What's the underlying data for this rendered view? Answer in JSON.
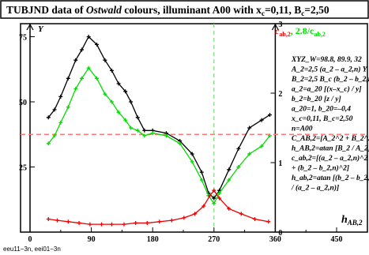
{
  "chart_data": {
    "type": "line",
    "title_parts": {
      "prefix": "TUBJND data of ",
      "italic": "Ostwald",
      "mid": " colours, illuminant A00 with x",
      "sub_c": "c",
      "mid2": "=0,11, B",
      "sub_c2": "c",
      "suffix": "=2,50"
    },
    "ylabel_left": "Y",
    "ylabel_right_red": "c",
    "ylabel_right_red_sub": "ab,2",
    "ylabel_right_green": ", 2.8/c",
    "ylabel_right_green_sub": "ab,2",
    "xlabel": "h",
    "xlabel_sub": "AB,2",
    "xlim": [
      0,
      480
    ],
    "ylim": [
      0,
      80
    ],
    "xticks": [
      "0",
      "90",
      "180",
      "270",
      "360",
      "450"
    ],
    "xtick_values": [
      0,
      90,
      180,
      270,
      360,
      450
    ],
    "yticks_left": [
      "25",
      "50",
      "75"
    ],
    "ytick_left_values": [
      25,
      50,
      75
    ],
    "yticks_right": [
      "0",
      "1",
      "2",
      "3"
    ],
    "ytick_right_values": [
      0,
      26.667,
      53.333,
      80
    ],
    "annotations": [
      "XYZ_W=98.8, 89.9, 32",
      "A_2=2,5 (a_2 – a_2,n) Y",
      "B_2=2,5 B_c (b_2 – b_2,n)",
      "a_2=a_20 [(x–x_c) / y]",
      "b_2=b_20 [z / y]",
      "a_20=1, b_20=–0,4",
      "x_c=0,11, B_c=2,50",
      "n=A00",
      "C_AB,2=[A_2^2 + B_2^2]^1/2",
      "h_AB,2=atan [B_2 / A_2]",
      "c_ab,2=[(a_2 – a_2,n)^2",
      "+ (b_2 – b_2,n)^2]",
      "h_ab,2=atan [(b_2 – b_2,n)",
      "/ (a_2 – a_2,n)]"
    ],
    "reference_line": 37.5,
    "series": [
      {
        "color": "#000000",
        "x": [
          27,
          36,
          45,
          56,
          67,
          76,
          86,
          98,
          110,
          120,
          130,
          140,
          148,
          158,
          168,
          180,
          200,
          220,
          238,
          252,
          262,
          270,
          278,
          292,
          306,
          322,
          340,
          352
        ],
        "y": [
          44,
          47,
          52,
          59,
          66,
          70,
          75,
          72,
          66,
          62,
          57,
          54,
          50,
          44,
          39,
          39,
          38,
          35,
          30,
          23,
          15,
          13,
          16,
          24,
          32,
          40,
          43,
          45
        ]
      },
      {
        "color": "#00dd00",
        "x": [
          27,
          36,
          45,
          56,
          67,
          76,
          86,
          98,
          110,
          120,
          130,
          140,
          148,
          158,
          168,
          180,
          200,
          220,
          238,
          252,
          262,
          270,
          278,
          292,
          306,
          322,
          340,
          352
        ],
        "y": [
          34,
          37,
          42,
          48,
          55,
          59,
          63,
          59,
          53,
          50,
          46,
          43,
          40,
          39,
          37,
          38,
          37,
          34,
          27,
          20,
          14,
          11,
          15,
          20,
          25,
          30,
          33,
          37
        ]
      },
      {
        "color": "#ee0000",
        "x": [
          27,
          40,
          56,
          72,
          88,
          105,
          120,
          138,
          155,
          172,
          190,
          208,
          226,
          242,
          255,
          264,
          270,
          278,
          292,
          310,
          330,
          350
        ],
        "y": [
          5,
          4.5,
          4,
          3.5,
          3,
          3,
          3,
          3,
          3.5,
          3.5,
          4,
          4.5,
          5.5,
          7,
          10,
          14,
          16,
          13,
          9,
          7,
          5,
          4
        ]
      }
    ]
  },
  "footer": "eeu11−3n, eei01−3n",
  "colors": {
    "black": "#000000",
    "green": "#00dd00",
    "red": "#ee0000",
    "refline": "#ff7777"
  }
}
